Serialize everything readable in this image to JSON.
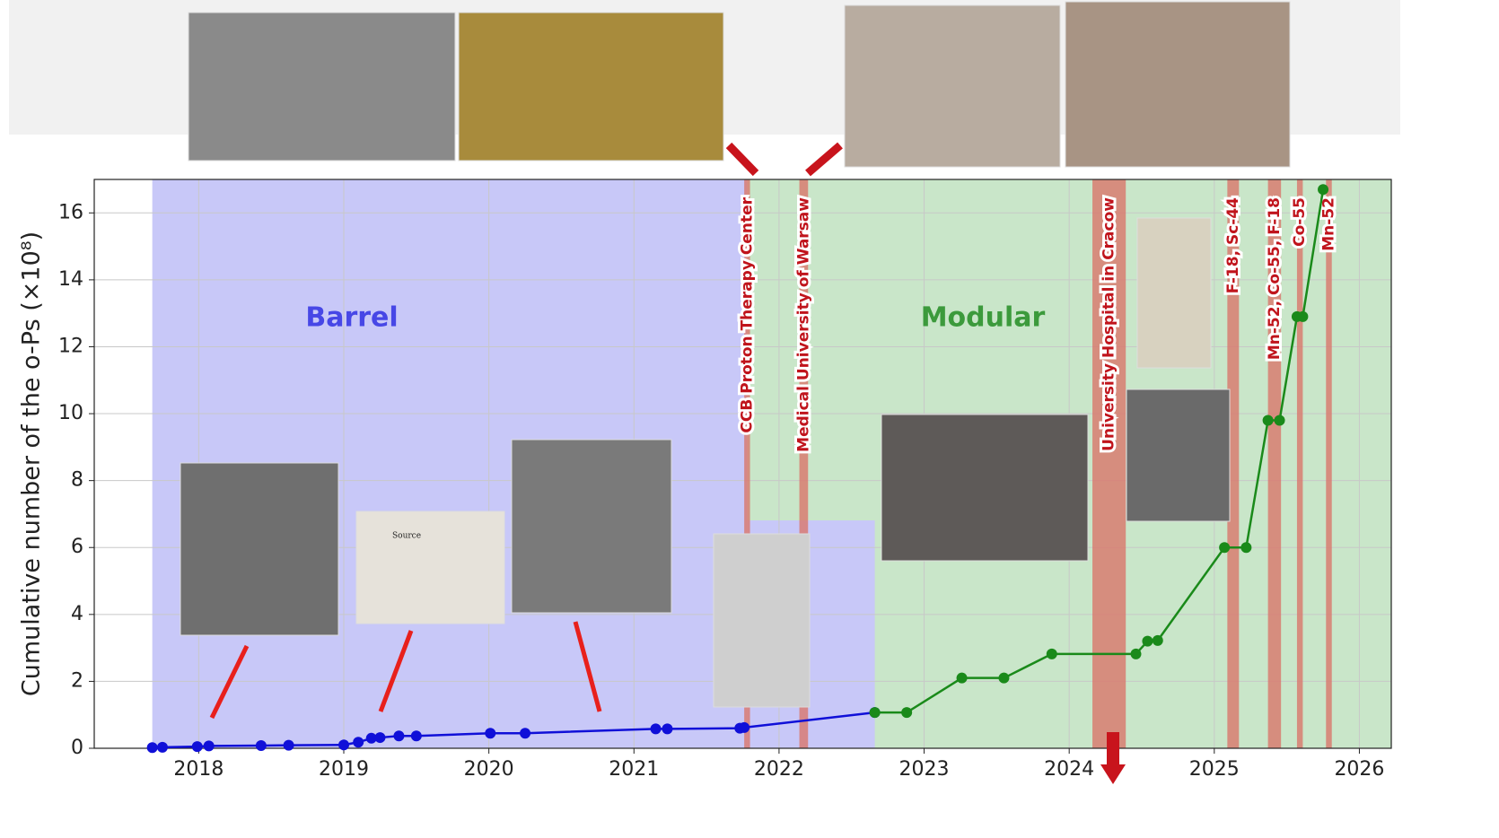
{
  "chart_data": {
    "type": "line",
    "ylabel": "Cumulative number of the o-Ps (×10⁸)",
    "xlim": [
      2017.28,
      2026.22
    ],
    "ylim": [
      0,
      17
    ],
    "xticks": [
      2018,
      2019,
      2020,
      2021,
      2022,
      2023,
      2024,
      2025,
      2026
    ],
    "yticks": [
      0,
      2,
      4,
      6,
      8,
      10,
      12,
      14,
      16
    ],
    "grid": true,
    "regions": [
      {
        "label": "Barrel",
        "color": "#c8c8f8",
        "text_color": "#4747e6",
        "start": 2017.68,
        "end": 2022.66
      },
      {
        "label": "Modular",
        "color": "#c9e6c9",
        "text_color": "#3c9a3c",
        "start": 2021.78,
        "end": 2026.22
      }
    ],
    "events": [
      {
        "label": "CCB Proton Therapy Center",
        "start": 2021.76,
        "end": 2021.8
      },
      {
        "label": "Medical University of Warsaw",
        "start": 2022.14,
        "end": 2022.2
      },
      {
        "label": "University Hospital in Cracow",
        "start": 2024.16,
        "end": 2024.39
      },
      {
        "label": "F-18, Sc-44",
        "start": 2025.09,
        "end": 2025.17
      },
      {
        "label": "Mn-52, Co-55, F-18",
        "start": 2025.37,
        "end": 2025.46
      },
      {
        "label": "Co-55",
        "start": 2025.57,
        "end": 2025.61
      },
      {
        "label": "Mn-52",
        "start": 2025.77,
        "end": 2025.81
      }
    ],
    "annotations": [
      "Source"
    ],
    "series": [
      {
        "name": "Barrel",
        "color": "#1010d8",
        "x": [
          2017.68,
          2017.75,
          2017.99,
          2018.07,
          2018.43,
          2018.62,
          2019.0,
          2019.1,
          2019.19,
          2019.25,
          2019.38,
          2019.5,
          2020.01,
          2020.25,
          2021.15,
          2021.23,
          2021.73,
          2021.76,
          2022.66
        ],
        "values": [
          0.02,
          0.03,
          0.05,
          0.07,
          0.08,
          0.09,
          0.1,
          0.18,
          0.3,
          0.32,
          0.37,
          0.37,
          0.45,
          0.45,
          0.58,
          0.58,
          0.6,
          0.62,
          1.07
        ]
      },
      {
        "name": "Modular",
        "color": "#1a8a1a",
        "x": [
          2022.66,
          2022.88,
          2023.26,
          2023.55,
          2023.88,
          2024.46,
          2024.54,
          2024.61,
          2025.07,
          2025.22,
          2025.37,
          2025.45,
          2025.57,
          2025.61,
          2025.75
        ],
        "values": [
          1.07,
          1.07,
          2.1,
          2.1,
          2.82,
          2.82,
          3.2,
          3.22,
          6.0,
          6.0,
          9.8,
          9.8,
          12.9,
          12.9,
          16.7
        ]
      }
    ]
  }
}
